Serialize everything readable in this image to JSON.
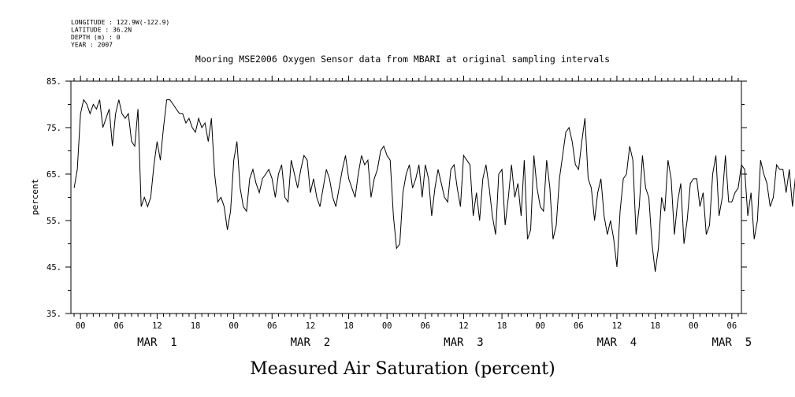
{
  "metadata": {
    "longitude": "LONGITUDE : 122.9W(-122.9)",
    "latitude": "LATITUDE : 36.2N",
    "depth": "DEPTH (m) : 0",
    "year": "YEAR : 2007"
  },
  "chart_data": {
    "type": "line",
    "title": "Mooring MSE2006 Oxygen Sensor data from MBARI at original sampling intervals",
    "xlabel": "Measured Air Saturation (percent)",
    "ylabel": "percent",
    "ylim": [
      35,
      85
    ],
    "yticks": [
      35,
      45,
      55,
      65,
      75,
      85
    ],
    "ytick_labels": [
      "35.",
      "45.",
      "55.",
      "65.",
      "75.",
      "85."
    ],
    "xlim_hours": [
      -1.5,
      103.5
    ],
    "hour_ticks": [
      0,
      6,
      12,
      18,
      24,
      30,
      36,
      42,
      48,
      54,
      60,
      66,
      72,
      78,
      84,
      90,
      96,
      102
    ],
    "hour_tick_labels": [
      "00",
      "06",
      "12",
      "18",
      "00",
      "06",
      "12",
      "18",
      "00",
      "06",
      "12",
      "18",
      "00",
      "06",
      "12",
      "18",
      "00",
      "06"
    ],
    "day_labels": [
      {
        "hour": 12,
        "label": "MAR  1"
      },
      {
        "hour": 36,
        "label": "MAR  2"
      },
      {
        "hour": 60,
        "label": "MAR  3"
      },
      {
        "hour": 84,
        "label": "MAR  4"
      },
      {
        "hour": 102,
        "label": "MAR  5"
      }
    ],
    "grid": false,
    "series": [
      {
        "name": "Oxygen air saturation",
        "x_start_hour": -1.0,
        "x_step_hour": 0.5,
        "values": [
          62,
          66,
          78,
          81,
          80,
          78,
          80,
          79,
          81,
          75,
          77,
          79,
          71,
          78,
          81,
          78,
          77,
          78,
          72,
          71,
          79,
          58,
          60,
          58,
          60,
          67,
          72,
          68,
          75,
          81,
          81,
          80,
          79,
          78,
          78,
          76,
          77,
          75,
          74,
          77,
          75,
          76,
          72,
          77,
          65,
          59,
          60,
          58,
          53,
          57,
          68,
          72,
          62,
          58,
          57,
          64,
          66,
          63,
          61,
          64,
          65,
          66,
          64,
          60,
          65,
          67,
          60,
          59,
          68,
          65,
          62,
          66,
          69,
          68,
          61,
          64,
          60,
          58,
          62,
          66,
          64,
          60,
          58,
          62,
          66,
          69,
          64,
          62,
          60,
          65,
          69,
          67,
          68,
          60,
          64,
          66,
          70,
          71,
          69,
          68,
          56,
          49,
          50,
          61,
          65,
          67,
          62,
          64,
          67,
          60,
          67,
          64,
          56,
          62,
          66,
          63,
          60,
          59,
          66,
          67,
          62,
          58,
          69,
          68,
          67,
          56,
          61,
          55,
          64,
          67,
          62,
          56,
          52,
          65,
          66,
          54,
          60,
          67,
          60,
          63,
          56,
          68,
          51,
          53,
          69,
          62,
          58,
          57,
          68,
          62,
          51,
          54,
          64,
          69,
          74,
          75,
          72,
          67,
          66,
          72,
          77,
          64,
          62,
          55,
          61,
          64,
          56,
          52,
          55,
          51,
          45,
          57,
          64,
          65,
          71,
          68,
          52,
          58,
          69,
          62,
          60,
          50,
          44,
          49,
          60,
          57,
          68,
          64,
          52,
          59,
          63,
          50,
          55,
          63,
          64,
          64,
          58,
          61,
          52,
          54,
          65,
          69,
          56,
          60,
          69,
          59,
          59,
          61,
          62,
          67,
          66,
          56,
          61,
          51,
          55,
          68,
          65,
          63,
          58,
          60,
          67,
          66,
          66,
          61,
          66,
          58,
          65,
          54,
          58,
          67,
          68,
          62,
          63,
          66,
          51,
          46,
          56,
          68,
          61,
          55,
          52,
          60,
          62,
          67,
          59,
          64,
          67,
          63,
          59,
          66,
          63,
          51,
          55,
          62,
          64,
          58,
          55,
          65,
          68,
          61,
          64,
          62,
          56,
          68,
          72,
          66,
          60,
          72,
          64,
          47,
          53,
          68,
          80,
          66,
          57,
          69,
          82,
          83,
          68,
          61,
          63,
          61,
          56,
          72,
          71,
          73,
          64,
          66,
          54,
          58,
          46,
          50,
          54,
          60,
          60,
          53,
          47,
          56,
          56,
          47,
          46,
          48,
          41,
          46,
          39,
          48,
          46,
          44,
          54,
          48,
          57,
          44,
          44,
          50,
          40,
          48,
          45,
          47,
          48,
          41,
          45,
          43,
          43,
          47,
          55,
          54,
          47,
          46,
          46,
          42,
          48,
          50,
          48,
          41,
          39,
          48,
          50,
          44,
          54,
          57,
          53,
          51,
          50,
          43,
          47,
          49,
          52,
          54
        ]
      }
    ]
  }
}
